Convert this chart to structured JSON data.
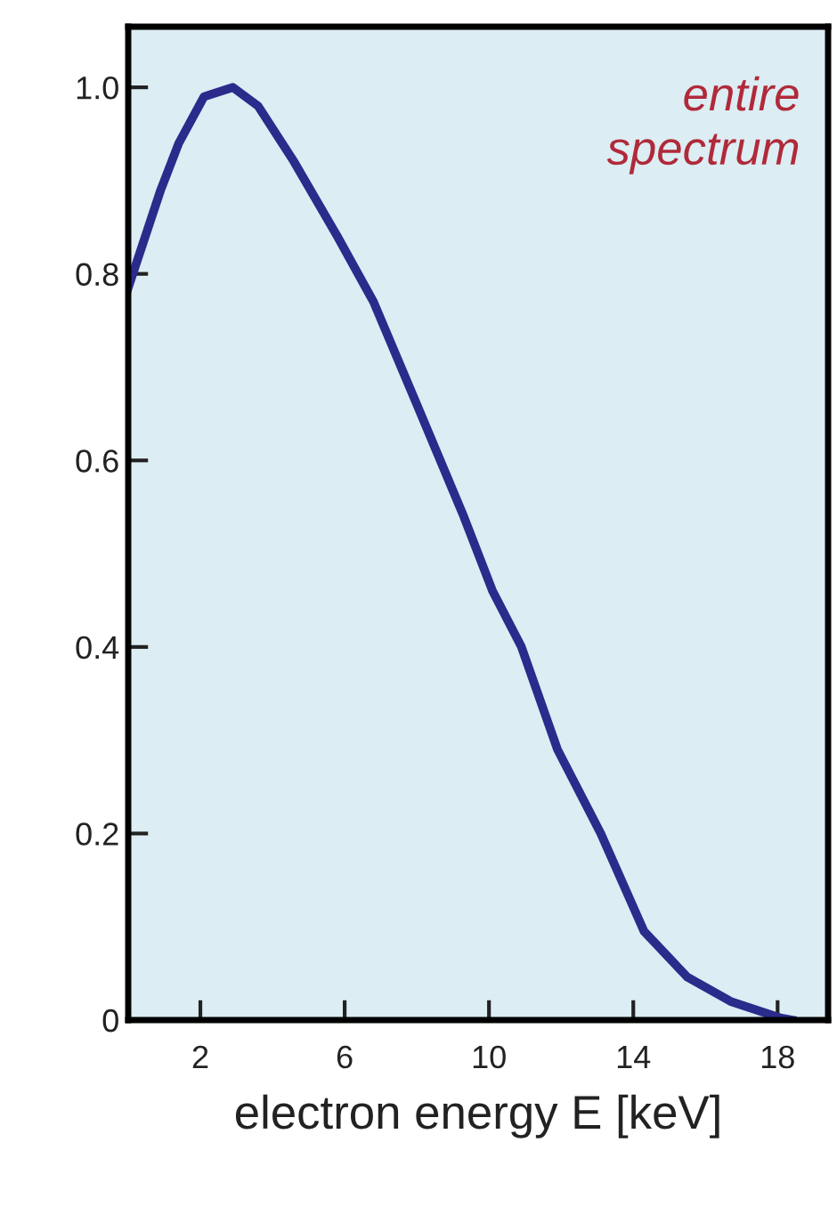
{
  "chart_data": {
    "type": "line",
    "xlabel": "electron energy E [keV]",
    "annotations": [
      "entire\nspectrum"
    ],
    "x": [
      0,
      0.9,
      1.4,
      2.1,
      2.9,
      3.6,
      4.6,
      5.8,
      6.8,
      8.0,
      9.3,
      10.1,
      10.9,
      11.9,
      13.1,
      14.3,
      15.5,
      16.7,
      18.1,
      18.4
    ],
    "series": [
      {
        "color": "#2b2b8c",
        "values": [
          0.785,
          0.89,
          0.94,
          0.99,
          1.0,
          0.98,
          0.92,
          0.84,
          0.77,
          0.66,
          0.54,
          0.46,
          0.4,
          0.29,
          0.2,
          0.095,
          0.046,
          0.02,
          0.002,
          0
        ]
      }
    ],
    "xlim": [
      0,
      19.4
    ],
    "xticks": [
      2,
      6,
      10,
      14,
      18
    ],
    "ylim": [
      0,
      1.065
    ],
    "yticks": [
      0,
      0.2,
      0.4,
      0.6,
      0.8,
      {
        "value": 1.0,
        "label": "1.0"
      }
    ],
    "grid": false,
    "legend": false,
    "marker": "none",
    "line_style": "solid"
  }
}
